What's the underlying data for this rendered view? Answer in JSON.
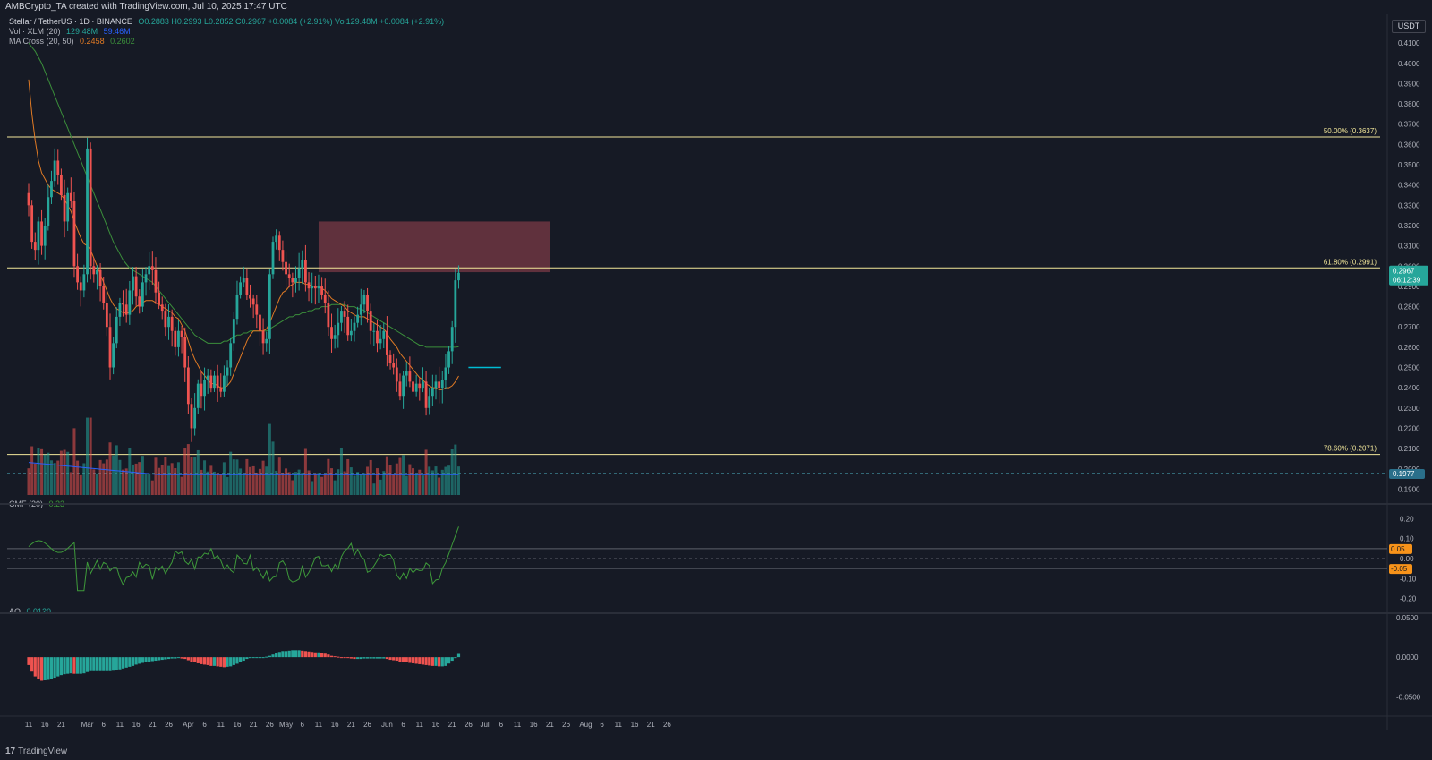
{
  "header": {
    "created_by": "AMBCrypto_TA created with TradingView.com, Jul 10, 2025 17:47 UTC"
  },
  "legend": {
    "symbol": "Stellar / TetherUS · 1D · BINANCE",
    "ohlc": "O0.2883 H0.2993 L0.2852 C0.2967 +0.0084 (+2.91%) Vol129.48M +0.0084 (+2.91%)",
    "vol_label": "Vol · XLM (20)",
    "vol_value": "129.48M",
    "vol_ma": "59.46M",
    "ma_label": "MA Cross (20, 50)",
    "ma_fast": "0.2458",
    "ma_slow": "0.2602",
    "cmf_label": "CMF (20)",
    "cmf_value": "0.23",
    "ao_label": "AO",
    "ao_value": "0.0120"
  },
  "footer": {
    "brand": "TradingView"
  },
  "currency": "USDT",
  "colors": {
    "bg": "#161a25",
    "up": "#26a69a",
    "down": "#ef5350",
    "ma_fast": "#e07a25",
    "ma_slow": "#3b8f3b",
    "fib": "#f2e79a",
    "zone": "#7a3a46",
    "vol_ma": "#2962ff",
    "cmf": "#3e9a3a",
    "cyan": "#00bcd4"
  },
  "chart_data": {
    "type": "candlestick",
    "title": "Stellar / TetherUS · 1D · BINANCE",
    "price_axis": {
      "ticks": [
        "0.4100",
        "0.4000",
        "0.3900",
        "0.3800",
        "0.3700",
        "0.3600",
        "0.3500",
        "0.3400",
        "0.3300",
        "0.3200",
        "0.3100",
        "0.3000",
        "0.2900",
        "0.2800",
        "0.2700",
        "0.2600",
        "0.2500",
        "0.2400",
        "0.2300",
        "0.2200",
        "0.2100",
        "0.2000",
        "0.1900"
      ],
      "range": [
        0.184,
        0.418
      ]
    },
    "x_labels": [
      {
        "label": "11",
        "day": 0
      },
      {
        "label": "16",
        "day": 5
      },
      {
        "label": "21",
        "day": 10
      },
      {
        "label": "Mar",
        "day": 18
      },
      {
        "label": "6",
        "day": 23
      },
      {
        "label": "11",
        "day": 28
      },
      {
        "label": "16",
        "day": 33
      },
      {
        "label": "21",
        "day": 38
      },
      {
        "label": "26",
        "day": 43
      },
      {
        "label": "Apr",
        "day": 49
      },
      {
        "label": "6",
        "day": 54
      },
      {
        "label": "11",
        "day": 59
      },
      {
        "label": "16",
        "day": 64
      },
      {
        "label": "21",
        "day": 69
      },
      {
        "label": "26",
        "day": 74
      },
      {
        "label": "May",
        "day": 79
      },
      {
        "label": "6",
        "day": 84
      },
      {
        "label": "11",
        "day": 89
      },
      {
        "label": "16",
        "day": 94
      },
      {
        "label": "21",
        "day": 99
      },
      {
        "label": "26",
        "day": 104
      },
      {
        "label": "Jun",
        "day": 110
      },
      {
        "label": "6",
        "day": 115
      },
      {
        "label": "11",
        "day": 120
      },
      {
        "label": "16",
        "day": 125
      },
      {
        "label": "21",
        "day": 130
      },
      {
        "label": "26",
        "day": 135
      },
      {
        "label": "Jul",
        "day": 140
      },
      {
        "label": "6",
        "day": 145
      },
      {
        "label": "11",
        "day": 150
      },
      {
        "label": "16",
        "day": 155
      },
      {
        "label": "21",
        "day": 160
      },
      {
        "label": "26",
        "day": 165
      },
      {
        "label": "Aug",
        "day": 171
      },
      {
        "label": "6",
        "day": 176
      },
      {
        "label": "11",
        "day": 181
      },
      {
        "label": "16",
        "day": 186
      },
      {
        "label": "21",
        "day": 191
      },
      {
        "label": "26",
        "day": 196
      }
    ],
    "closes": [
      0.33,
      0.312,
      0.308,
      0.322,
      0.31,
      0.32,
      0.334,
      0.342,
      0.352,
      0.345,
      0.335,
      0.322,
      0.336,
      0.332,
      0.3,
      0.292,
      0.288,
      0.296,
      0.358,
      0.3,
      0.296,
      0.298,
      0.29,
      0.282,
      0.27,
      0.25,
      0.262,
      0.275,
      0.282,
      0.281,
      0.276,
      0.288,
      0.295,
      0.285,
      0.28,
      0.292,
      0.296,
      0.3,
      0.298,
      0.287,
      0.281,
      0.278,
      0.27,
      0.275,
      0.268,
      0.26,
      0.268,
      0.265,
      0.25,
      0.232,
      0.22,
      0.23,
      0.242,
      0.236,
      0.244,
      0.246,
      0.24,
      0.246,
      0.24,
      0.238,
      0.246,
      0.25,
      0.262,
      0.274,
      0.286,
      0.292,
      0.294,
      0.286,
      0.284,
      0.281,
      0.276,
      0.268,
      0.262,
      0.264,
      0.296,
      0.312,
      0.315,
      0.308,
      0.302,
      0.296,
      0.294,
      0.292,
      0.294,
      0.299,
      0.303,
      0.292,
      0.289,
      0.29,
      0.289,
      0.29,
      0.286,
      0.282,
      0.27,
      0.264,
      0.266,
      0.272,
      0.278,
      0.275,
      0.266,
      0.268,
      0.272,
      0.276,
      0.281,
      0.286,
      0.278,
      0.268,
      0.268,
      0.262,
      0.264,
      0.268,
      0.256,
      0.252,
      0.25,
      0.243,
      0.236,
      0.246,
      0.248,
      0.243,
      0.238,
      0.242,
      0.24,
      0.243,
      0.23,
      0.236,
      0.24,
      0.243,
      0.24,
      0.244,
      0.25,
      0.258,
      0.27,
      0.293,
      0.2967
    ],
    "ma20": [
      0.392,
      0.375,
      0.362,
      0.352,
      0.346,
      0.343,
      0.34,
      0.338,
      0.337,
      0.336,
      0.335,
      0.333,
      0.33,
      0.327,
      0.322,
      0.318,
      0.314,
      0.311,
      0.31,
      0.308,
      0.304,
      0.3,
      0.296,
      0.292,
      0.288,
      0.284,
      0.281,
      0.279,
      0.278,
      0.277,
      0.277,
      0.277,
      0.278,
      0.28,
      0.281,
      0.282,
      0.283,
      0.283,
      0.283,
      0.282,
      0.281,
      0.28,
      0.279,
      0.278,
      0.277,
      0.275,
      0.274,
      0.271,
      0.268,
      0.263,
      0.258,
      0.254,
      0.251,
      0.248,
      0.246,
      0.244,
      0.242,
      0.242,
      0.241,
      0.24,
      0.24,
      0.241,
      0.243,
      0.247,
      0.251,
      0.255,
      0.259,
      0.263,
      0.266,
      0.268,
      0.268,
      0.268,
      0.268,
      0.269,
      0.272,
      0.276,
      0.28,
      0.284,
      0.287,
      0.288,
      0.29,
      0.291,
      0.292,
      0.292,
      0.292,
      0.291,
      0.291,
      0.29,
      0.29,
      0.29,
      0.289,
      0.288,
      0.286,
      0.284,
      0.283,
      0.282,
      0.281,
      0.28,
      0.278,
      0.277,
      0.276,
      0.275,
      0.275,
      0.275,
      0.274,
      0.273,
      0.272,
      0.271,
      0.27,
      0.269,
      0.267,
      0.264,
      0.262,
      0.26,
      0.257,
      0.255,
      0.253,
      0.251,
      0.249,
      0.247,
      0.245,
      0.244,
      0.242,
      0.241,
      0.24,
      0.24,
      0.239,
      0.239,
      0.24,
      0.24,
      0.241,
      0.243,
      0.2458
    ],
    "ma50": [
      0.41,
      0.408,
      0.406,
      0.403,
      0.4,
      0.396,
      0.392,
      0.388,
      0.384,
      0.38,
      0.376,
      0.372,
      0.368,
      0.364,
      0.36,
      0.356,
      0.352,
      0.348,
      0.344,
      0.34,
      0.336,
      0.332,
      0.328,
      0.324,
      0.32,
      0.316,
      0.312,
      0.309,
      0.306,
      0.303,
      0.301,
      0.299,
      0.298,
      0.297,
      0.296,
      0.295,
      0.294,
      0.293,
      0.292,
      0.29,
      0.288,
      0.286,
      0.284,
      0.282,
      0.28,
      0.278,
      0.276,
      0.274,
      0.272,
      0.27,
      0.268,
      0.266,
      0.265,
      0.264,
      0.263,
      0.262,
      0.262,
      0.262,
      0.262,
      0.262,
      0.263,
      0.263,
      0.264,
      0.265,
      0.266,
      0.266,
      0.267,
      0.267,
      0.268,
      0.268,
      0.268,
      0.268,
      0.268,
      0.268,
      0.269,
      0.27,
      0.271,
      0.272,
      0.273,
      0.274,
      0.275,
      0.275,
      0.276,
      0.276,
      0.277,
      0.277,
      0.278,
      0.278,
      0.279,
      0.279,
      0.28,
      0.28,
      0.28,
      0.281,
      0.281,
      0.281,
      0.281,
      0.281,
      0.28,
      0.28,
      0.28,
      0.279,
      0.279,
      0.278,
      0.277,
      0.276,
      0.275,
      0.274,
      0.273,
      0.272,
      0.271,
      0.27,
      0.269,
      0.268,
      0.267,
      0.266,
      0.265,
      0.264,
      0.263,
      0.262,
      0.261,
      0.261,
      0.26,
      0.26,
      0.26,
      0.26,
      0.26,
      0.26,
      0.26,
      0.26,
      0.26,
      0.26,
      0.2602
    ],
    "volume_axis": {
      "range": [
        0,
        1
      ]
    },
    "fib_levels": [
      {
        "label": "50.00% (0.3637)",
        "price": 0.3637
      },
      {
        "label": "61.80% (0.2991)",
        "price": 0.2991
      },
      {
        "label": "78.60% (0.2071)",
        "price": 0.2071
      }
    ],
    "resistance_zone": {
      "from_day": 89,
      "to_day": 160,
      "low": 0.297,
      "high": 0.322
    },
    "breakout_line": {
      "from_day": 135,
      "to_day": 145,
      "price": 0.25
    },
    "current_price": {
      "label": "0.2967",
      "countdown": "06:12:39"
    },
    "dashed_level": {
      "label": "0.1977",
      "price": 0.1977
    },
    "cmf": {
      "ticks": [
        "0.20",
        "0.10",
        "0.00",
        "-0.10",
        "-0.20"
      ],
      "range": [
        -0.26,
        0.26
      ],
      "markers": [
        "0.05",
        "-0.05"
      ]
    },
    "ao": {
      "ticks": [
        "0.0500",
        "0.0000",
        "-0.0500"
      ],
      "range": [
        -0.072,
        0.052
      ]
    }
  }
}
